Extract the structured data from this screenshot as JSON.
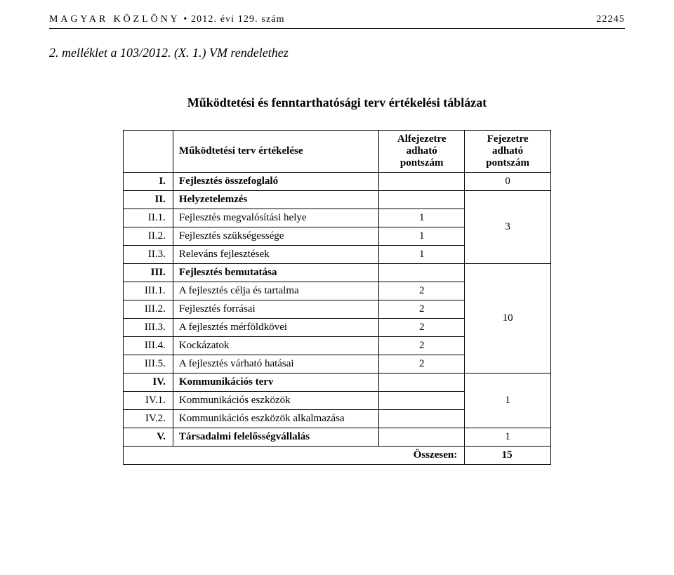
{
  "header": {
    "left": "MAGYAR KÖZLÖNY",
    "dot": "•",
    "year_issue": "2012. évi 129. szám",
    "page_number": "22245"
  },
  "attachment": "2. melléklet a 103/2012. (X. 1.) VM rendelethez",
  "table_title": "Működtetési és fenntarthatósági terv értékelési táblázat",
  "columns": {
    "eval": "Működtetési terv értékelése",
    "sub": "Alfejezetre adható pontszám",
    "chap": "Fejezetre adható pontszám"
  },
  "rows": [
    {
      "type": "section",
      "num": "I.",
      "label": "Fejlesztés összefoglaló",
      "sub": "",
      "chap": "0",
      "chap_rowspan": 1
    },
    {
      "type": "section",
      "num": "II.",
      "label": "Helyzetelemzés",
      "sub": "",
      "chap": "3",
      "chap_rowspan": 4
    },
    {
      "type": "item",
      "num": "II.1.",
      "label": "Fejlesztés megvalósítási helye",
      "sub": "1"
    },
    {
      "type": "item",
      "num": "II.2.",
      "label": "Fejlesztés szükségessége",
      "sub": "1"
    },
    {
      "type": "item",
      "num": "II.3.",
      "label": "Releváns fejlesztések",
      "sub": "1"
    },
    {
      "type": "section",
      "num": "III.",
      "label": "Fejlesztés bemutatása",
      "sub": "",
      "chap": "10",
      "chap_rowspan": 6
    },
    {
      "type": "item",
      "num": "III.1.",
      "label": "A fejlesztés célja és tartalma",
      "sub": "2"
    },
    {
      "type": "item",
      "num": "III.2.",
      "label": "Fejlesztés forrásai",
      "sub": "2"
    },
    {
      "type": "item",
      "num": "III.3.",
      "label": "A fejlesztés mérföldkövei",
      "sub": "2"
    },
    {
      "type": "item",
      "num": "III.4.",
      "label": "Kockázatok",
      "sub": "2"
    },
    {
      "type": "item",
      "num": "III.5.",
      "label": "A fejlesztés várható hatásai",
      "sub": "2"
    },
    {
      "type": "section",
      "num": "IV.",
      "label": "Kommunikációs terv",
      "sub": "",
      "chap": "1",
      "chap_rowspan": 3
    },
    {
      "type": "item",
      "num": "IV.1.",
      "label": "Kommunikációs eszközök",
      "sub": ""
    },
    {
      "type": "item",
      "num": "IV.2.",
      "label": "Kommunikációs eszközök alkalmazása",
      "sub": ""
    },
    {
      "type": "section",
      "num": "V.",
      "label": "Társadalmi felelősségvállalás",
      "sub": "",
      "chap": "1",
      "chap_rowspan": 1
    }
  ],
  "total": {
    "label": "Összesen:",
    "value": "15"
  }
}
